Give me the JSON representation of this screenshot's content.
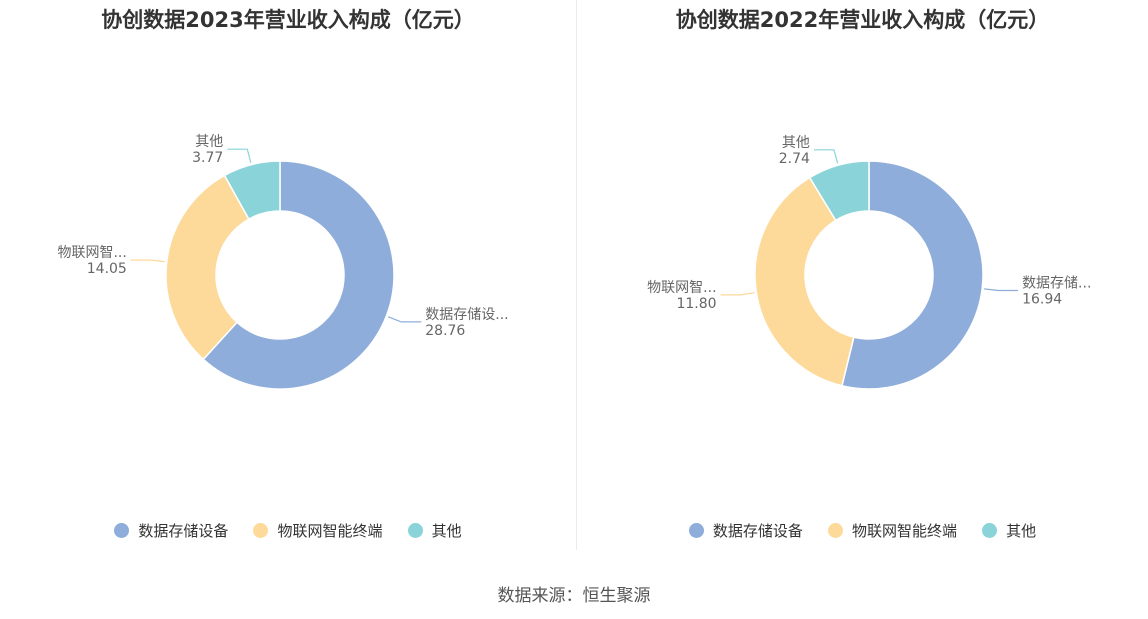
{
  "charts": [
    {
      "title": "协创数据2023年营业收入构成（亿元）",
      "legend": [
        "数据存储设备",
        "物联网智能终端",
        "其他"
      ],
      "slice_labels": [
        {
          "name": "数据存储设...",
          "value": "28.76"
        },
        {
          "name": "物联网智...",
          "value": "14.05"
        },
        {
          "name": "其他",
          "value": "3.77"
        }
      ]
    },
    {
      "title": "协创数据2022年营业收入构成（亿元）",
      "legend": [
        "数据存储设备",
        "物联网智能终端",
        "其他"
      ],
      "slice_labels": [
        {
          "name": "数据存储...",
          "value": "16.94"
        },
        {
          "name": "物联网智...",
          "value": "11.80"
        },
        {
          "name": "其他",
          "value": "2.74"
        }
      ]
    }
  ],
  "source": "数据来源：恒生聚源",
  "colors": [
    "#8eadda",
    "#fdd99a",
    "#8ad4d9"
  ],
  "chart_data": [
    {
      "type": "pie",
      "title": "协创数据2023年营业收入构成（亿元）",
      "categories": [
        "数据存储设备",
        "物联网智能终端",
        "其他"
      ],
      "values": [
        28.76,
        14.05,
        3.77
      ],
      "legend": "bottom"
    },
    {
      "type": "pie",
      "title": "协创数据2022年营业收入构成（亿元）",
      "categories": [
        "数据存储设备",
        "物联网智能终端",
        "其他"
      ],
      "values": [
        16.94,
        11.8,
        2.74
      ],
      "legend": "bottom"
    }
  ]
}
